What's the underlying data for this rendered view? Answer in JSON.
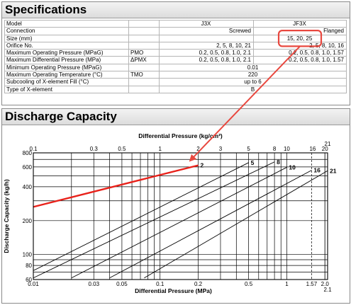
{
  "specifications": {
    "title": "Specifications",
    "header": {
      "label": "Model",
      "col1": "J3X",
      "col2": "JF3X"
    },
    "rows": [
      {
        "label": "Connection",
        "symbol": "",
        "col1": "Screwed",
        "col2": "Flanged",
        "span": false
      },
      {
        "label": "Size (mm)",
        "symbol": "",
        "col1": "",
        "col2": "15, 20, 25",
        "span": false
      },
      {
        "label": "Orifice No.",
        "symbol": "",
        "col1": "2,   5,   8,   10,   21",
        "col2": "2,   5,   8,   10,   16",
        "span": false
      },
      {
        "label": "Maximum Operating Pressure (MPaG)",
        "symbol": "PMO",
        "col1": "0.2, 0.5, 0.8, 1.0, 2.1",
        "col2": "0.2, 0.5, 0.8, 1.0, 1.57",
        "span": false
      },
      {
        "label": "Maximum Differential Pressure (MPa)",
        "symbol": "ΔPMX",
        "col1": "0.2, 0.5, 0.8, 1.0, 2.1",
        "col2": "0.2, 0.5, 0.8, 1.0, 1.57",
        "span": false
      },
      {
        "label": "Minimum Operating Pressure (MPaG)",
        "symbol": "",
        "col1": "0.01",
        "col2": "",
        "span": true
      },
      {
        "label": "Maximum Operating Temperature (°C)",
        "symbol": "TMO",
        "col1": "220",
        "col2": "",
        "span": true
      },
      {
        "label": "Subcooling of X-element Fill (°C)",
        "symbol": "",
        "col1": "up to 6",
        "col2": "",
        "span": true
      },
      {
        "label": "Type of X-element",
        "symbol": "",
        "col1": "B",
        "col2": "",
        "span": true
      }
    ]
  },
  "capacity": {
    "title": "Discharge Capacity"
  },
  "colors": {
    "highlight": "#e8483f",
    "red_series": "#e8211a",
    "grid": "#000000"
  },
  "chart_data": {
    "type": "line",
    "title": "",
    "xlabel": "Differential Pressure (MPa)",
    "x2label": "Differential Pressure (kg/cm²)",
    "ylabel": "Discharge Capacity (kg/h)",
    "xscale": "log",
    "yscale": "log",
    "xlim": [
      0.01,
      2.1
    ],
    "ylim": [
      60,
      800
    ],
    "x_ticks": [
      "0.01",
      "0.03",
      "0.05",
      "0.1",
      "0.2",
      "0.5",
      "1",
      "1.57",
      "2.0"
    ],
    "x_ticks_values": [
      0.01,
      0.03,
      0.05,
      0.1,
      0.2,
      0.5,
      1,
      1.57,
      2.0
    ],
    "x_tick_extra": "2.1",
    "x2_ticks": [
      "0.1",
      "0.3",
      "0.5",
      "1",
      "2",
      "3",
      "5",
      "8",
      "10",
      "16",
      "20",
      "21"
    ],
    "x2_ticks_values": [
      0.1,
      0.3,
      0.5,
      1,
      2,
      3,
      5,
      8,
      10,
      16,
      20,
      21
    ],
    "y_ticks": [
      "60",
      "80",
      "100",
      "200",
      "400",
      "600",
      "800"
    ],
    "y_ticks_values": [
      60,
      80,
      100,
      200,
      400,
      600,
      800
    ],
    "grid": true,
    "series": [
      {
        "name": "2",
        "highlight": true,
        "points": [
          [
            0.01,
            265
          ],
          [
            0.2,
            620
          ]
        ]
      },
      {
        "name": "5",
        "highlight": false,
        "points": [
          [
            0.01,
            72
          ],
          [
            0.5,
            655
          ]
        ]
      },
      {
        "name": "8",
        "highlight": false,
        "points": [
          [
            0.01,
            62
          ],
          [
            0.8,
            665
          ]
        ]
      },
      {
        "name": "10",
        "highlight": false,
        "points": [
          [
            0.02,
            62
          ],
          [
            1.0,
            595
          ]
        ]
      },
      {
        "name": "16",
        "highlight": false,
        "points": [
          [
            0.04,
            62
          ],
          [
            1.57,
            560
          ]
        ]
      },
      {
        "name": "21",
        "highlight": false,
        "points": [
          [
            0.075,
            62
          ],
          [
            2.1,
            555
          ]
        ]
      }
    ]
  }
}
